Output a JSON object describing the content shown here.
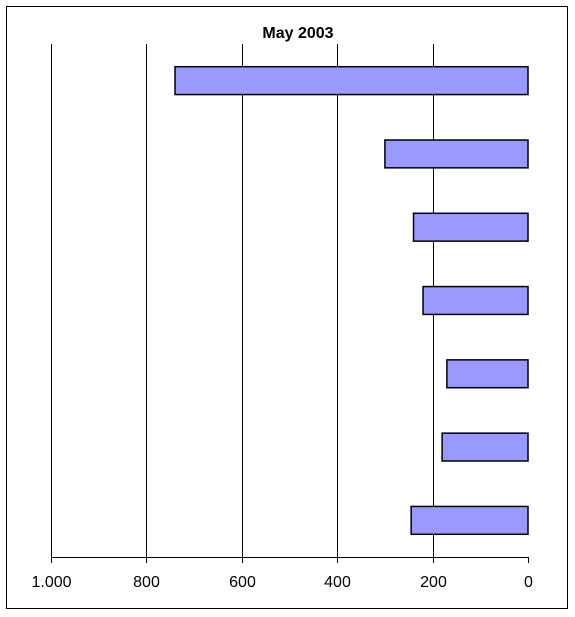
{
  "chart_data": {
    "type": "bar",
    "orientation": "horizontal",
    "x_axis_reversed": true,
    "title": "May 2003",
    "xlabel": "",
    "ylabel": "",
    "xlim": [
      0,
      1000
    ],
    "x_ticks": [
      0,
      200,
      400,
      600,
      800,
      1000
    ],
    "x_tick_labels": [
      "0",
      "200",
      "400",
      "600",
      "800",
      "1.000"
    ],
    "categories": [
      "",
      "",
      "",
      "",
      "",
      "",
      ""
    ],
    "values": [
      740,
      300,
      240,
      220,
      170,
      180,
      245
    ],
    "grid": true,
    "legend": "none",
    "colors": {
      "bar_fill": "#9999ff",
      "bar_stroke": "#000000",
      "grid": "#000000",
      "axis": "#000000"
    }
  }
}
